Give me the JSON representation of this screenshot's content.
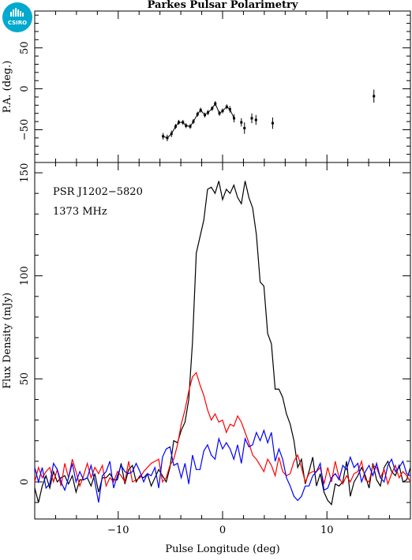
{
  "logo": {
    "text": "CSIRO",
    "color": "#00a9ce"
  },
  "chart_data": {
    "title": "Parkes Pulsar Polarimetry",
    "annotations": [
      "PSR J1202−5820",
      "1373 MHz"
    ],
    "xlabel": "Pulse Longitude (deg)",
    "xlim": [
      -18,
      18
    ],
    "x_ticks": [
      -10,
      0,
      10
    ],
    "x_tick_labels": [
      "−10",
      "0",
      "10"
    ],
    "panels": [
      {
        "name": "pa",
        "type": "scatter",
        "ylabel": "P.A. (deg.)",
        "ylim": [
          -90,
          95
        ],
        "y_ticks": [
          -50,
          0,
          50
        ],
        "y_tick_labels": [
          "−50",
          "0",
          "50"
        ],
        "points": [
          {
            "x": -5.7,
            "y": -58,
            "err": 4
          },
          {
            "x": -5.3,
            "y": -60,
            "err": 4
          },
          {
            "x": -4.9,
            "y": -55,
            "err": 4
          },
          {
            "x": -4.5,
            "y": -46,
            "err": 3
          },
          {
            "x": -4.2,
            "y": -41,
            "err": 3
          },
          {
            "x": -3.8,
            "y": -41,
            "err": 3
          },
          {
            "x": -3.5,
            "y": -45,
            "err": 3
          },
          {
            "x": -3.1,
            "y": -46,
            "err": 3
          },
          {
            "x": -2.8,
            "y": -40,
            "err": 3
          },
          {
            "x": -2.4,
            "y": -31,
            "err": 3
          },
          {
            "x": -2.1,
            "y": -26,
            "err": 3
          },
          {
            "x": -1.7,
            "y": -32,
            "err": 3
          },
          {
            "x": -1.4,
            "y": -29,
            "err": 3
          },
          {
            "x": -1.0,
            "y": -24,
            "err": 3
          },
          {
            "x": -0.7,
            "y": -18,
            "err": 3
          },
          {
            "x": -0.3,
            "y": -30,
            "err": 3
          },
          {
            "x": 0.0,
            "y": -27,
            "err": 3
          },
          {
            "x": 0.4,
            "y": -22,
            "err": 3
          },
          {
            "x": 0.7,
            "y": -25,
            "err": 4
          },
          {
            "x": 1.1,
            "y": -36,
            "err": 5
          },
          {
            "x": 1.8,
            "y": -41,
            "err": 5
          },
          {
            "x": 2.1,
            "y": -48,
            "err": 7
          },
          {
            "x": 2.8,
            "y": -36,
            "err": 6
          },
          {
            "x": 3.2,
            "y": -38,
            "err": 6
          },
          {
            "x": 4.8,
            "y": -42,
            "err": 7
          },
          {
            "x": 14.5,
            "y": -9,
            "err": 8
          }
        ]
      },
      {
        "name": "profile",
        "type": "line",
        "ylabel": "Flux Density (mJy)",
        "ylim": [
          -18,
          155
        ],
        "y_ticks": [
          0,
          50,
          100,
          150
        ],
        "y_tick_labels": [
          "0",
          "50",
          "100",
          "150"
        ],
        "x_start": -18,
        "x_step": 0.36,
        "series": [
          {
            "color": "#000000",
            "values": [
              -3,
              -10,
              -2,
              3,
              -3,
              5,
              0,
              2,
              3,
              -1,
              3,
              -5,
              1,
              1,
              2,
              -2,
              4,
              -5,
              2,
              2,
              4,
              1,
              1,
              9,
              -1,
              6,
              8,
              0,
              3,
              2,
              4,
              -2,
              2,
              6,
              3,
              0,
              7,
              20,
              19,
              25,
              29,
              40,
              68,
              111,
              119,
              127,
              142,
              143,
              140,
              146,
              137,
              142,
              140,
              144,
              138,
              135,
              146,
              138,
              133,
              120,
              97,
              95,
              72,
              67,
              45,
              45,
              41,
              33,
              28,
              20,
              7,
              11,
              -1,
              5,
              12,
              -2,
              4,
              -5,
              -9,
              -11,
              -1,
              -2,
              0,
              10,
              -7,
              0,
              3,
              7,
              3,
              -3,
              9,
              1,
              -2,
              7,
              10,
              5,
              3,
              8,
              0,
              1,
              7
            ]
          },
          {
            "color": "#ff0000",
            "values": [
              0,
              7,
              2,
              5,
              7,
              0,
              6,
              -2,
              9,
              2,
              11,
              5,
              -2,
              3,
              9,
              2,
              7,
              4,
              8,
              -2,
              2,
              0,
              5,
              3,
              0,
              10,
              0,
              1,
              2,
              5,
              7,
              9,
              10,
              11,
              0,
              2,
              8,
              11,
              18,
              28,
              35,
              44,
              51,
              53,
              47,
              42,
              35,
              30,
              33,
              29,
              30,
              24,
              28,
              27,
              32,
              29,
              24,
              19,
              13,
              11,
              8,
              5,
              11,
              8,
              3,
              12,
              5,
              3,
              4,
              10,
              13,
              7,
              0,
              4,
              5,
              5,
              7,
              -1,
              7,
              0,
              10,
              2,
              -1,
              3,
              0,
              4,
              5,
              10,
              1,
              0,
              8,
              7,
              2,
              6,
              -1,
              4,
              8,
              2,
              5,
              3,
              0
            ]
          },
          {
            "color": "#0000ff",
            "values": [
              7,
              0,
              7,
              -3,
              -1,
              9,
              6,
              0,
              -4,
              2,
              9,
              0,
              5,
              1,
              2,
              8,
              0,
              -10,
              3,
              5,
              10,
              -3,
              3,
              8,
              5,
              4,
              5,
              9,
              5,
              0,
              4,
              3,
              7,
              -3,
              12,
              16,
              17,
              8,
              9,
              2,
              9,
              -1,
              13,
              6,
              6,
              15,
              18,
              13,
              11,
              21,
              16,
              19,
              16,
              11,
              18,
              9,
              21,
              17,
              18,
              24,
              20,
              25,
              19,
              24,
              10,
              16,
              11,
              2,
              -2,
              -7,
              -9,
              -7,
              -2,
              -2,
              3,
              5,
              9,
              -4,
              -3,
              2,
              4,
              1,
              8,
              6,
              12,
              7,
              9,
              0,
              5,
              8,
              3,
              9,
              2,
              0,
              8,
              11,
              5,
              7,
              10,
              4,
              3
            ]
          }
        ]
      }
    ]
  }
}
